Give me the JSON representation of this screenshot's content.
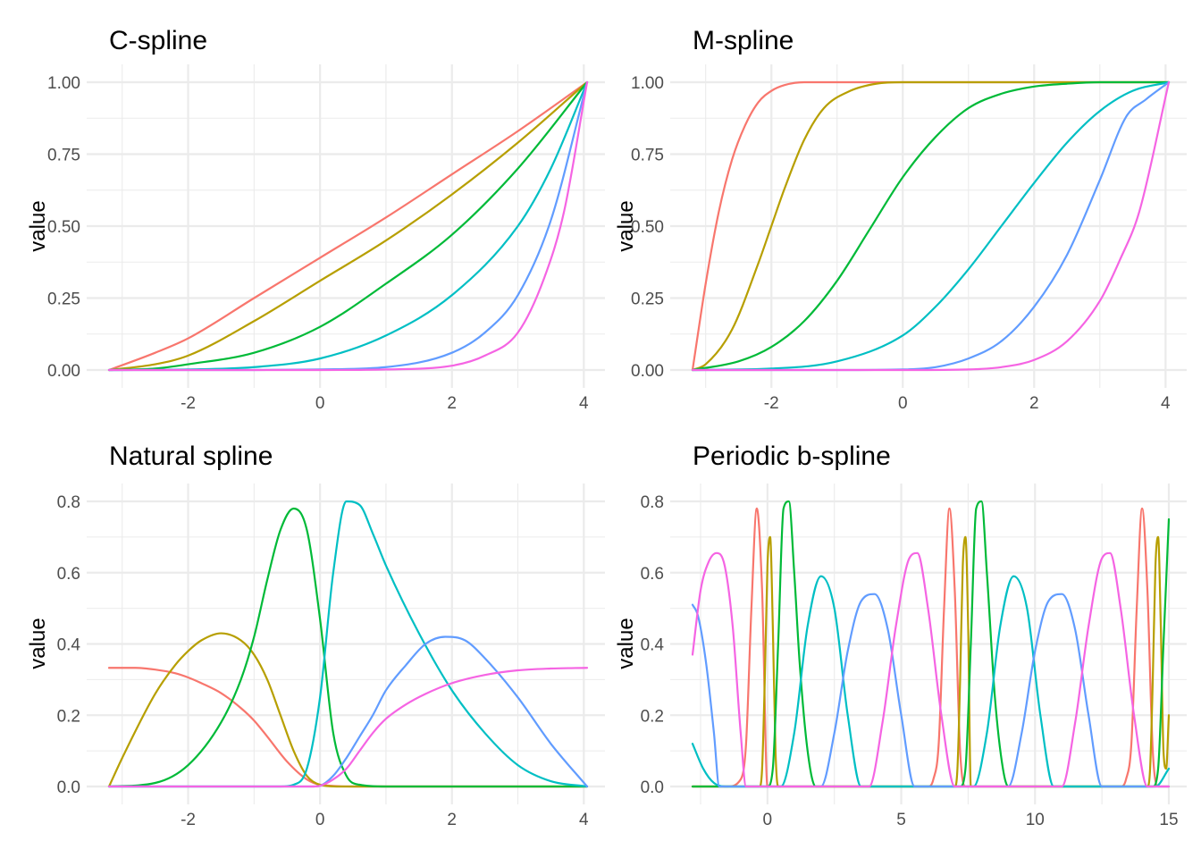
{
  "series_colors": [
    "#F8766D",
    "#B79F00",
    "#00BA38",
    "#00BFC4",
    "#619CFF",
    "#F564E3"
  ],
  "chart_data": [
    {
      "type": "line",
      "title": "C-spline",
      "ylabel": "value",
      "xlim": [
        -3.2,
        4.05
      ],
      "ylim": [
        0,
        1
      ],
      "x_ticks": [
        -2,
        0,
        2,
        4
      ],
      "x_tick_labels": [
        "-2",
        "0",
        "2",
        "4"
      ],
      "y_ticks": [
        0,
        0.25,
        0.5,
        0.75,
        1
      ],
      "y_tick_labels": [
        "0.00",
        "0.25",
        "0.50",
        "0.75",
        "1.00"
      ],
      "grid": true,
      "series": [
        {
          "x": [
            -3.2,
            -2.5,
            -2,
            -1,
            0,
            1,
            2,
            3,
            4.05
          ],
          "y": [
            0,
            0.06,
            0.11,
            0.25,
            0.39,
            0.53,
            0.68,
            0.83,
            1
          ]
        },
        {
          "x": [
            -3.2,
            -2.5,
            -2,
            -1,
            0,
            1,
            2,
            3,
            4.05
          ],
          "y": [
            0,
            0.02,
            0.05,
            0.17,
            0.31,
            0.45,
            0.61,
            0.79,
            1
          ]
        },
        {
          "x": [
            -3.2,
            -2.5,
            -2,
            -1,
            0,
            1,
            2,
            3,
            4.05
          ],
          "y": [
            0,
            0.005,
            0.02,
            0.06,
            0.15,
            0.3,
            0.47,
            0.7,
            1
          ]
        },
        {
          "x": [
            -3.2,
            -2,
            -1,
            0,
            1,
            2,
            3,
            3.5,
            4.05
          ],
          "y": [
            0,
            0.002,
            0.01,
            0.04,
            0.12,
            0.26,
            0.5,
            0.7,
            1
          ]
        },
        {
          "x": [
            -3.2,
            -1,
            0,
            1,
            2,
            2.5,
            3,
            3.5,
            4.05
          ],
          "y": [
            0,
            0,
            0.002,
            0.01,
            0.06,
            0.13,
            0.26,
            0.52,
            1
          ]
        },
        {
          "x": [
            -3.2,
            0,
            1,
            2,
            2.5,
            3,
            3.4,
            3.7,
            4.05
          ],
          "y": [
            0,
            0,
            0.002,
            0.015,
            0.05,
            0.13,
            0.32,
            0.55,
            1
          ]
        }
      ]
    },
    {
      "type": "line",
      "title": "M-spline",
      "ylabel": "value",
      "xlim": [
        -3.2,
        4.05
      ],
      "ylim": [
        0,
        1
      ],
      "x_ticks": [
        -2,
        0,
        2,
        4
      ],
      "x_tick_labels": [
        "-2",
        "0",
        "2",
        "4"
      ],
      "y_ticks": [
        0,
        0.25,
        0.5,
        0.75,
        1
      ],
      "y_tick_labels": [
        "0.00",
        "0.25",
        "0.50",
        "0.75",
        "1.00"
      ],
      "grid": true,
      "series": [
        {
          "x": [
            -3.2,
            -3,
            -2.8,
            -2.6,
            -2.4,
            -2.2,
            -2,
            -1.8,
            -1.5,
            -1,
            4.05
          ],
          "y": [
            0,
            0.3,
            0.55,
            0.73,
            0.85,
            0.93,
            0.97,
            0.99,
            1,
            1,
            1
          ]
        },
        {
          "x": [
            -3.2,
            -3,
            -2.6,
            -2.2,
            -2,
            -1.8,
            -1.5,
            -1.2,
            -0.8,
            -0.4,
            0,
            4.05
          ],
          "y": [
            0,
            0.02,
            0.14,
            0.37,
            0.5,
            0.63,
            0.8,
            0.91,
            0.97,
            0.995,
            1,
            1
          ]
        },
        {
          "x": [
            -3.2,
            -2.5,
            -2,
            -1.5,
            -1,
            -0.5,
            0,
            0.5,
            1,
            1.5,
            2,
            2.5,
            3,
            4.05
          ],
          "y": [
            0,
            0.03,
            0.08,
            0.17,
            0.31,
            0.49,
            0.67,
            0.81,
            0.91,
            0.96,
            0.985,
            0.995,
            1,
            1
          ]
        },
        {
          "x": [
            -3.2,
            -2,
            -1,
            0,
            0.5,
            1,
            1.5,
            2,
            2.5,
            3,
            3.5,
            4.05
          ],
          "y": [
            0,
            0.005,
            0.03,
            0.12,
            0.22,
            0.35,
            0.5,
            0.65,
            0.79,
            0.9,
            0.97,
            1
          ]
        },
        {
          "x": [
            -3.2,
            -1,
            0,
            0.5,
            1,
            1.5,
            2,
            2.5,
            3,
            3.4,
            3.7,
            4.05
          ],
          "y": [
            0,
            0,
            0.002,
            0.01,
            0.04,
            0.1,
            0.22,
            0.4,
            0.66,
            0.88,
            0.94,
            1
          ]
        },
        {
          "x": [
            -3.2,
            0,
            1,
            1.5,
            2,
            2.5,
            3,
            3.3,
            3.6,
            4.05
          ],
          "y": [
            0,
            0,
            0.002,
            0.01,
            0.035,
            0.1,
            0.24,
            0.38,
            0.55,
            1
          ]
        }
      ]
    },
    {
      "type": "line",
      "title": "Natural spline",
      "ylabel": "value",
      "xlim": [
        -3.2,
        4.05
      ],
      "ylim": [
        0,
        0.8
      ],
      "x_ticks": [
        -2,
        0,
        2,
        4
      ],
      "x_tick_labels": [
        "-2",
        "0",
        "2",
        "4"
      ],
      "y_ticks": [
        0,
        0.2,
        0.4,
        0.6,
        0.8
      ],
      "y_tick_labels": [
        "0.0",
        "0.2",
        "0.4",
        "0.6",
        "0.8"
      ],
      "grid": true,
      "series": [
        {
          "x": [
            -3.2,
            -2.8,
            -2.5,
            -2.2,
            -2,
            -1.8,
            -1.5,
            -1.2,
            -1,
            -0.8,
            -0.5,
            -0.2,
            0,
            0.5,
            4.05
          ],
          "y": [
            0.333,
            0.333,
            0.328,
            0.318,
            0.306,
            0.29,
            0.262,
            0.22,
            0.185,
            0.14,
            0.07,
            0.02,
            0.005,
            0,
            0
          ]
        },
        {
          "x": [
            -3.2,
            -3,
            -2.5,
            -2.2,
            -2,
            -1.8,
            -1.5,
            -1.2,
            -1,
            -0.8,
            -0.6,
            -0.4,
            -0.2,
            0,
            0.3,
            4.05
          ],
          "y": [
            0,
            0.08,
            0.26,
            0.34,
            0.38,
            0.41,
            0.43,
            0.41,
            0.37,
            0.3,
            0.2,
            0.1,
            0.03,
            0.005,
            0,
            0
          ]
        },
        {
          "x": [
            -3.2,
            -2.5,
            -2,
            -1.5,
            -1.2,
            -1,
            -0.8,
            -0.6,
            -0.4,
            -0.2,
            0,
            0.2,
            0.4,
            0.6,
            1,
            4.05
          ],
          "y": [
            0,
            0.01,
            0.06,
            0.18,
            0.3,
            0.42,
            0.58,
            0.72,
            0.78,
            0.72,
            0.47,
            0.15,
            0.03,
            0.005,
            0,
            0
          ]
        },
        {
          "x": [
            -3.2,
            -0.6,
            -0.4,
            -0.2,
            0,
            0.2,
            0.4,
            0.6,
            0.8,
            1,
            1.5,
            2,
            2.5,
            3,
            3.5,
            4.05
          ],
          "y": [
            0,
            0,
            0.005,
            0.05,
            0.25,
            0.6,
            0.8,
            0.79,
            0.71,
            0.62,
            0.43,
            0.27,
            0.15,
            0.06,
            0.015,
            0
          ]
        },
        {
          "x": [
            -3.2,
            -0.1,
            0,
            0.2,
            0.4,
            0.6,
            0.8,
            1,
            1.3,
            1.6,
            1.9,
            2.2,
            2.5,
            3,
            3.5,
            4.05
          ],
          "y": [
            0,
            0,
            0.002,
            0.03,
            0.08,
            0.14,
            0.2,
            0.27,
            0.34,
            0.4,
            0.42,
            0.41,
            0.36,
            0.25,
            0.12,
            0
          ]
        },
        {
          "x": [
            -3.2,
            -0.1,
            0,
            0.2,
            0.4,
            0.6,
            0.8,
            1,
            1.3,
            1.6,
            2,
            2.5,
            3,
            3.5,
            4.05
          ],
          "y": [
            0,
            0,
            0.002,
            0.02,
            0.05,
            0.1,
            0.15,
            0.19,
            0.23,
            0.26,
            0.29,
            0.313,
            0.326,
            0.331,
            0.333
          ]
        }
      ]
    },
    {
      "type": "line",
      "title": "Periodic b-spline",
      "ylabel": "value",
      "xlim": [
        -2.8,
        15
      ],
      "ylim": [
        0,
        0.8
      ],
      "x_ticks": [
        0,
        5,
        10,
        15
      ],
      "x_tick_labels": [
        "0",
        "5",
        "10",
        "15"
      ],
      "y_ticks": [
        0,
        0.2,
        0.4,
        0.6,
        0.8
      ],
      "y_tick_labels": [
        "0.0",
        "0.2",
        "0.4",
        "0.6",
        "0.8"
      ],
      "grid": true,
      "series": [
        {
          "x": [
            -2.8,
            -1.5,
            -1.0,
            -0.8,
            -0.6,
            -0.4,
            -0.2,
            0,
            6.0,
            6.2,
            6.4,
            6.6,
            6.8,
            7.0,
            7.2,
            7.4,
            13.2,
            13.4,
            13.6,
            13.8,
            14.0,
            14.2,
            14.4,
            14.6,
            15
          ],
          "y": [
            0,
            0,
            0.02,
            0.12,
            0.5,
            0.78,
            0.55,
            0,
            0,
            0.02,
            0.12,
            0.5,
            0.78,
            0.55,
            0.1,
            0,
            0,
            0.02,
            0.12,
            0.5,
            0.78,
            0.55,
            0.1,
            0,
            0
          ]
        },
        {
          "x": [
            -2.8,
            -0.3,
            -0.2,
            -0.1,
            0,
            0.1,
            0.2,
            0.3,
            0.4,
            7.0,
            7.1,
            7.2,
            7.3,
            7.4,
            7.5,
            7.6,
            14.2,
            14.3,
            14.4,
            14.5,
            14.6,
            14.7,
            14.8,
            14.9,
            15
          ],
          "y": [
            0,
            0,
            0.05,
            0.3,
            0.62,
            0.7,
            0.45,
            0.1,
            0,
            0,
            0.05,
            0.3,
            0.62,
            0.7,
            0.45,
            0,
            0,
            0.05,
            0.3,
            0.62,
            0.7,
            0.45,
            0.1,
            0.05,
            0.2
          ]
        },
        {
          "x": [
            -2.8,
            0,
            0.2,
            0.4,
            0.6,
            0.8,
            1.0,
            1.2,
            1.5,
            1.8,
            7.2,
            7.4,
            7.6,
            7.8,
            8.0,
            8.2,
            8.5,
            8.8,
            9.0,
            14.4,
            14.6,
            14.8,
            15
          ],
          "y": [
            0,
            0,
            0.05,
            0.4,
            0.78,
            0.8,
            0.6,
            0.35,
            0.1,
            0,
            0,
            0.05,
            0.4,
            0.78,
            0.8,
            0.6,
            0.25,
            0.05,
            0,
            0,
            0.05,
            0.4,
            0.75
          ]
        },
        {
          "x": [
            -2.8,
            -2.4,
            -2.0,
            -1.5,
            0.5,
            1.0,
            1.5,
            2.0,
            2.5,
            3.0,
            3.5,
            7.7,
            8.2,
            8.7,
            9.2,
            9.7,
            10.2,
            10.7,
            14.5,
            15
          ],
          "y": [
            0.12,
            0.05,
            0.01,
            0,
            0,
            0.15,
            0.45,
            0.59,
            0.5,
            0.2,
            0,
            0,
            0.15,
            0.45,
            0.59,
            0.5,
            0.2,
            0,
            0,
            0.05
          ]
        },
        {
          "x": [
            -2.8,
            -2.6,
            -2.3,
            -2.0,
            -1.8,
            2.0,
            2.5,
            3.0,
            3.5,
            4.0,
            4.5,
            5.0,
            5.5,
            9.0,
            9.5,
            10.0,
            10.5,
            11.0,
            11.5,
            12.0,
            12.5,
            15
          ],
          "y": [
            0.51,
            0.48,
            0.35,
            0.15,
            0,
            0,
            0.15,
            0.38,
            0.52,
            0.54,
            0.44,
            0.2,
            0,
            0,
            0.15,
            0.38,
            0.52,
            0.54,
            0.44,
            0.2,
            0,
            0
          ]
        },
        {
          "x": [
            -2.8,
            -2.5,
            -2.2,
            -1.9,
            -1.6,
            -1.3,
            -1.0,
            -0.8,
            3.8,
            4.3,
            4.8,
            5.3,
            5.6,
            6.0,
            6.5,
            7.0,
            11.0,
            11.5,
            12.0,
            12.5,
            12.8,
            13.2,
            13.7,
            14.2,
            15
          ],
          "y": [
            0.37,
            0.55,
            0.63,
            0.655,
            0.62,
            0.45,
            0.15,
            0,
            0,
            0.18,
            0.45,
            0.64,
            0.655,
            0.5,
            0.2,
            0,
            0,
            0.18,
            0.45,
            0.64,
            0.655,
            0.5,
            0.2,
            0,
            0
          ]
        }
      ]
    }
  ]
}
